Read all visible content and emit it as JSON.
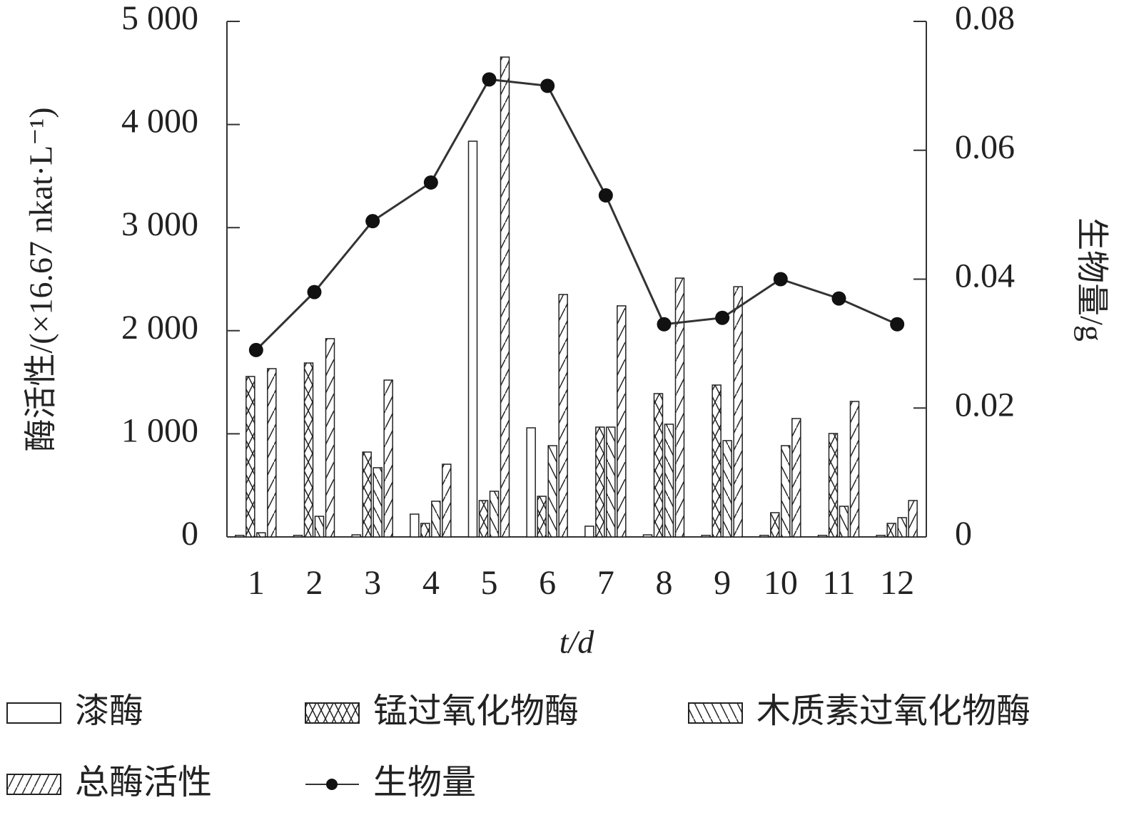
{
  "chart_data": {
    "type": "bar",
    "x_label": "t/d",
    "y_label": "酶活性/(×16.67 nkat·L⁻¹)",
    "y2_label": "生物量/g",
    "categories": [
      "1",
      "2",
      "3",
      "4",
      "5",
      "6",
      "7",
      "8",
      "9",
      "10",
      "11",
      "12"
    ],
    "series": [
      {
        "name": "漆酶",
        "color": "#222222",
        "hatch": "none",
        "values": [
          15,
          15,
          20,
          221,
          3838,
          1058,
          104,
          20,
          15,
          15,
          15,
          15
        ]
      },
      {
        "name": "锰过氧化物酶",
        "color": "#222222",
        "hatch": "cross",
        "values": [
          1556,
          1687,
          823,
          131,
          353,
          394,
          1065,
          1390,
          1473,
          235,
          1003,
          131
        ]
      },
      {
        "name": "木质素过氧化物酶",
        "color": "#222222",
        "hatch": "backslash",
        "values": [
          40,
          200,
          671,
          346,
          443,
          885,
          1065,
          1093,
          934,
          885,
          297,
          187
        ]
      },
      {
        "name": "总酶活性",
        "color": "#222222",
        "hatch": "slash",
        "values": [
          1632,
          1923,
          1521,
          705,
          4654,
          2351,
          2241,
          2510,
          2427,
          1148,
          1314,
          353
        ]
      },
      {
        "name": "生物量",
        "color": "#333333",
        "type": "line",
        "axis": "y2",
        "values": [
          0.029,
          0.038,
          0.049,
          0.055,
          0.071,
          0.07,
          0.053,
          0.033,
          0.034,
          0.04,
          0.037,
          0.033
        ]
      }
    ],
    "ylim": [
      0,
      5000
    ],
    "yticks": [
      0,
      {
        "value": 1000,
        "label": "1 000"
      },
      {
        "value": 2000,
        "label": "2 000"
      },
      {
        "value": 3000,
        "label": "3 000"
      },
      {
        "value": 4000,
        "label": "4 000"
      },
      {
        "value": 5000,
        "label": "5 000"
      }
    ],
    "y2lim": [
      0,
      0.08
    ],
    "y2ticks": [
      0,
      0.02,
      0.04,
      0.06,
      0.08
    ],
    "grid": false
  }
}
